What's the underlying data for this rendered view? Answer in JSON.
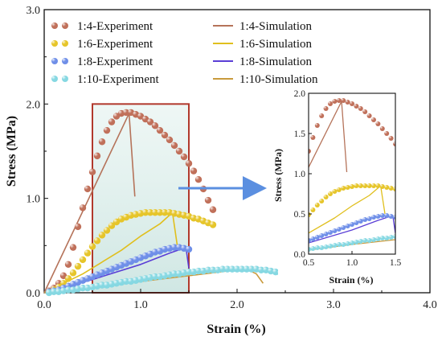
{
  "chart_data": {
    "type": "scatter",
    "xlabel": "Strain (%)",
    "ylabel": "Stress (MPa)",
    "xlim": [
      0,
      4
    ],
    "ylim": [
      0,
      3
    ],
    "xticks": [
      "0.0",
      "1.0",
      "2.0",
      "3.0",
      "4.0"
    ],
    "yticks": [
      "0.0",
      "1.0",
      "2.0",
      "3.0"
    ],
    "legend": {
      "placement": "top-left",
      "entries": [
        "1:4-Experiment",
        "1:4-Simulation",
        "1:6-Experiment",
        "1:6-Simulation",
        "1:8-Experiment",
        "1:8-Simulation",
        "1:10-Experiment",
        "1:10-Simulation"
      ]
    },
    "series": [
      {
        "name": "1:4-Experiment",
        "kind": "points",
        "color": "#c0705a",
        "x": [
          0.05,
          0.1,
          0.15,
          0.2,
          0.25,
          0.3,
          0.35,
          0.4,
          0.45,
          0.5,
          0.55,
          0.6,
          0.65,
          0.7,
          0.75,
          0.8,
          0.85,
          0.9,
          0.95,
          1.0,
          1.05,
          1.1,
          1.15,
          1.2,
          1.25,
          1.3,
          1.35,
          1.4,
          1.45,
          1.5,
          1.55,
          1.6,
          1.65,
          1.7,
          1.75
        ],
        "y": [
          0.02,
          0.05,
          0.1,
          0.18,
          0.3,
          0.48,
          0.7,
          0.9,
          1.1,
          1.28,
          1.45,
          1.6,
          1.72,
          1.81,
          1.87,
          1.9,
          1.91,
          1.91,
          1.89,
          1.87,
          1.84,
          1.81,
          1.77,
          1.72,
          1.67,
          1.62,
          1.56,
          1.5,
          1.44,
          1.37,
          1.29,
          1.2,
          1.1,
          0.98,
          0.88
        ]
      },
      {
        "name": "1:4-Simulation",
        "kind": "line",
        "color": "#b5735a",
        "x": [
          0,
          0.88,
          0.94
        ],
        "y": [
          0,
          1.9,
          1.02
        ]
      },
      {
        "name": "1:6-Experiment",
        "kind": "points",
        "color": "#e6c52a",
        "x": [
          0.05,
          0.1,
          0.15,
          0.2,
          0.25,
          0.3,
          0.35,
          0.4,
          0.45,
          0.5,
          0.55,
          0.6,
          0.65,
          0.7,
          0.75,
          0.8,
          0.85,
          0.9,
          0.95,
          1.0,
          1.05,
          1.1,
          1.15,
          1.2,
          1.25,
          1.3,
          1.35,
          1.4,
          1.45,
          1.5,
          1.55,
          1.6,
          1.65,
          1.7,
          1.75
        ],
        "y": [
          0.01,
          0.03,
          0.06,
          0.1,
          0.15,
          0.21,
          0.28,
          0.35,
          0.42,
          0.49,
          0.55,
          0.61,
          0.66,
          0.71,
          0.75,
          0.78,
          0.8,
          0.82,
          0.83,
          0.84,
          0.85,
          0.85,
          0.85,
          0.85,
          0.85,
          0.85,
          0.84,
          0.83,
          0.82,
          0.81,
          0.79,
          0.78,
          0.76,
          0.74,
          0.72
        ]
      },
      {
        "name": "1:6-Simulation",
        "kind": "line",
        "color": "#e0bf1d",
        "x": [
          0,
          0.4,
          0.8,
          1.0,
          1.2,
          1.33,
          1.38
        ],
        "y": [
          0,
          0.2,
          0.45,
          0.6,
          0.73,
          0.85,
          0.5
        ]
      },
      {
        "name": "1:8-Experiment",
        "kind": "points",
        "color": "#6f8fe8",
        "x": [
          0.05,
          0.1,
          0.15,
          0.2,
          0.25,
          0.3,
          0.35,
          0.4,
          0.45,
          0.5,
          0.55,
          0.6,
          0.65,
          0.7,
          0.75,
          0.8,
          0.85,
          0.9,
          0.95,
          1.0,
          1.05,
          1.1,
          1.15,
          1.2,
          1.25,
          1.3,
          1.35,
          1.4,
          1.45,
          1.5
        ],
        "y": [
          0.01,
          0.02,
          0.03,
          0.05,
          0.07,
          0.09,
          0.11,
          0.13,
          0.15,
          0.17,
          0.19,
          0.21,
          0.23,
          0.25,
          0.27,
          0.29,
          0.31,
          0.33,
          0.35,
          0.37,
          0.39,
          0.41,
          0.43,
          0.44,
          0.46,
          0.47,
          0.48,
          0.48,
          0.47,
          0.46
        ]
      },
      {
        "name": "1:8-Simulation",
        "kind": "line",
        "color": "#5a3ed6",
        "x": [
          0,
          0.5,
          1.0,
          1.3,
          1.47,
          1.5
        ],
        "y": [
          0,
          0.14,
          0.3,
          0.42,
          0.48,
          0.26
        ]
      },
      {
        "name": "1:10-Experiment",
        "kind": "points",
        "color": "#86d8e2",
        "x": [
          0.05,
          0.1,
          0.15,
          0.2,
          0.25,
          0.3,
          0.35,
          0.4,
          0.45,
          0.5,
          0.55,
          0.6,
          0.65,
          0.7,
          0.75,
          0.8,
          0.85,
          0.9,
          0.95,
          1.0,
          1.05,
          1.1,
          1.15,
          1.2,
          1.25,
          1.3,
          1.35,
          1.4,
          1.45,
          1.5,
          1.55,
          1.6,
          1.65,
          1.7,
          1.75,
          1.8,
          1.85,
          1.9,
          1.95,
          2.0,
          2.05,
          2.1,
          2.15,
          2.2,
          2.25,
          2.3,
          2.35,
          2.4,
          2.45,
          2.5
        ],
        "y": [
          0.0,
          0.01,
          0.01,
          0.02,
          0.03,
          0.03,
          0.04,
          0.05,
          0.05,
          0.06,
          0.07,
          0.08,
          0.08,
          0.09,
          0.1,
          0.11,
          0.12,
          0.12,
          0.13,
          0.14,
          0.15,
          0.16,
          0.17,
          0.17,
          0.18,
          0.19,
          0.2,
          0.2,
          0.21,
          0.22,
          0.22,
          0.23,
          0.23,
          0.24,
          0.24,
          0.24,
          0.25,
          0.25,
          0.25,
          0.25,
          0.25,
          0.25,
          0.25,
          0.25,
          0.24,
          0.24,
          0.23,
          0.22,
          0.21,
          0.2
        ]
      },
      {
        "name": "1:10-Simulation",
        "kind": "line",
        "color": "#c99a3c",
        "x": [
          0,
          0.5,
          1.0,
          1.5,
          1.9,
          2.1,
          2.2,
          2.27
        ],
        "y": [
          0,
          0.05,
          0.12,
          0.18,
          0.23,
          0.25,
          0.2,
          0.1
        ]
      }
    ],
    "highlight_box": {
      "x": [
        0.5,
        1.5
      ],
      "y": [
        0,
        2.0
      ]
    },
    "inset": {
      "xlabel": "Strain (%)",
      "ylabel": "Stress (MPa)",
      "xlim": [
        0.5,
        1.5
      ],
      "ylim": [
        0,
        2.0
      ],
      "xticks": [
        "0.5",
        "1.0",
        "1.5"
      ],
      "yticks": [
        "0.0",
        "0.5",
        "1.0",
        "1.5",
        "2.0"
      ]
    }
  }
}
